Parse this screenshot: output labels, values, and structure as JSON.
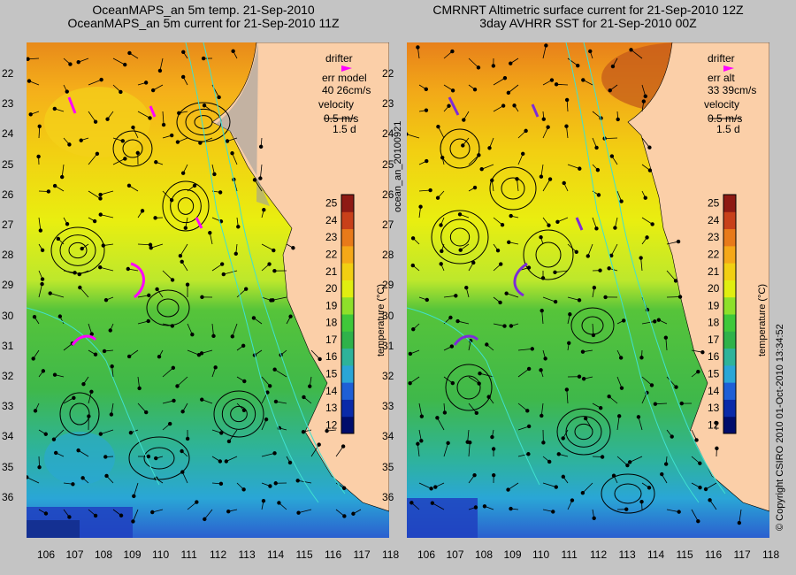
{
  "left_panel": {
    "title_line1": "OceanMAPS_an 5m temp. 21-Sep-2010",
    "title_line2": "OceanMAPS_an 5m current for 21-Sep-2010 11Z",
    "legend": {
      "drifter": "drifter",
      "err_label": "err model",
      "err_value": "40 26cm/s",
      "velocity": "velocity",
      "velocity_scale": "0.5 m/s",
      "duration": "1.5 d"
    },
    "y_ticks": [
      "22",
      "23",
      "24",
      "25",
      "26",
      "27",
      "28",
      "29",
      "30",
      "31",
      "32",
      "33",
      "34",
      "35",
      "36"
    ],
    "x_ticks": [
      "106",
      "107",
      "108",
      "109",
      "110",
      "111",
      "112",
      "113",
      "114",
      "115",
      "116",
      "117",
      "118"
    ],
    "colorbar": {
      "ticks": [
        "12",
        "13",
        "14",
        "15",
        "16",
        "17",
        "18",
        "19",
        "20",
        "21",
        "22",
        "23",
        "24",
        "25"
      ],
      "label": "temperature (°C)"
    }
  },
  "right_panel": {
    "title_line1": "CMRNRT Altimetric surface current for 21-Sep-2010 12Z",
    "title_line2": "3day AVHRR SST for 21-Sep-2010 00Z",
    "legend": {
      "drifter": "drifter",
      "err_label": "err alt",
      "err_value": "33 39cm/s",
      "velocity": "velocity",
      "velocity_scale": "0.5 m/s",
      "duration": "1.5 d"
    },
    "y_ticks": [
      "22",
      "23",
      "24",
      "25",
      "26",
      "27",
      "28",
      "29",
      "30",
      "31",
      "32",
      "33",
      "34",
      "35",
      "36"
    ],
    "x_ticks": [
      "106",
      "107",
      "108",
      "109",
      "110",
      "111",
      "112",
      "113",
      "114",
      "115",
      "116",
      "117",
      "118"
    ],
    "colorbar": {
      "ticks": [
        "12",
        "13",
        "14",
        "15",
        "16",
        "17",
        "18",
        "19",
        "20",
        "21",
        "22",
        "23",
        "24",
        "25"
      ],
      "label": "temperature (°C)"
    }
  },
  "side_label": "ocean_an_20100921",
  "copyright": "© Copyright CSIRO 2010   01-Oct-2010 13:34:52",
  "colors": {
    "background": "#c4c4c4",
    "land": "#fbcfa8",
    "drifter": "#ff00ff",
    "isobath": "#40e0d0",
    "contour": "#000000"
  }
}
